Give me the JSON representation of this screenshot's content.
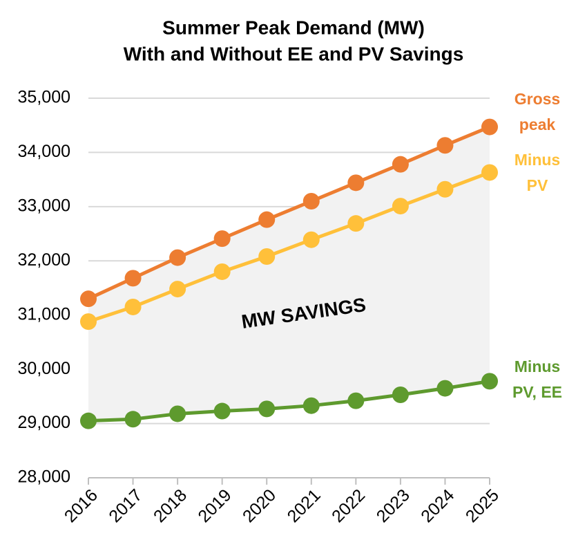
{
  "chart_data": {
    "type": "line",
    "title": "Summer Peak Demand (MW)",
    "subtitle": "With and Without EE and PV Savings",
    "annotation": "MW SAVINGS",
    "categories": [
      "2016",
      "2017",
      "2018",
      "2019",
      "2020",
      "2021",
      "2022",
      "2023",
      "2024",
      "2025"
    ],
    "series": [
      {
        "name": "Gross peak",
        "color": "#ED7D31",
        "values": [
          31300,
          31680,
          32060,
          32410,
          32760,
          33100,
          33440,
          33780,
          34130,
          34470
        ]
      },
      {
        "name": "Minus PV",
        "color": "#FFC03A",
        "values": [
          30880,
          31150,
          31480,
          31800,
          32080,
          32390,
          32690,
          33010,
          33320,
          33630
        ]
      },
      {
        "name": "Minus PV, EE",
        "color": "#5E9A2E",
        "values": [
          29050,
          29080,
          29180,
          29230,
          29270,
          29330,
          29420,
          29530,
          29650,
          29780
        ]
      }
    ],
    "ylim": [
      28000,
      35000
    ],
    "yticks": [
      {
        "value": 28000,
        "label": "28,000"
      },
      {
        "value": 29000,
        "label": "29,000"
      },
      {
        "value": 30000,
        "label": "30,000"
      },
      {
        "value": 31000,
        "label": "31,000"
      },
      {
        "value": 32000,
        "label": "32,000"
      },
      {
        "value": 33000,
        "label": "33,000"
      },
      {
        "value": 34000,
        "label": "34,000"
      },
      {
        "value": 35000,
        "label": "35,000"
      }
    ],
    "grid": true
  }
}
